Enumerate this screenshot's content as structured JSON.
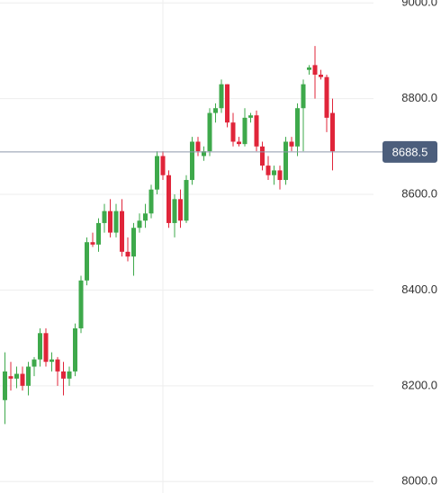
{
  "chart_data": {
    "type": "candlestick",
    "open": [
      8170,
      8220,
      8215,
      8225,
      8200,
      8240,
      8255,
      8310,
      8250,
      8255,
      8230,
      8215,
      8230,
      8320,
      8420,
      8500,
      8495,
      8540,
      8565,
      8520,
      8565,
      8480,
      8470,
      8530,
      8545,
      8560,
      8610,
      8680,
      8640,
      8540,
      8590,
      8545,
      8630,
      8710,
      8680,
      8690,
      8770,
      8780,
      8830,
      8750,
      8710,
      8705,
      8760,
      8765,
      8700,
      8660,
      8640,
      8650,
      8630,
      8710,
      8700,
      8780,
      8860,
      8870,
      8850,
      8845,
      8770
    ],
    "high": [
      8270,
      8250,
      8240,
      8240,
      8250,
      8260,
      8320,
      8320,
      8270,
      8260,
      8250,
      8240,
      8330,
      8430,
      8510,
      8520,
      8550,
      8580,
      8590,
      8580,
      8590,
      8510,
      8540,
      8560,
      8580,
      8620,
      8690,
      8690,
      8650,
      8600,
      8610,
      8640,
      8720,
      8720,
      8700,
      8780,
      8790,
      8840,
      8830,
      8770,
      8720,
      8780,
      8770,
      8775,
      8710,
      8680,
      8660,
      8660,
      8720,
      8720,
      8790,
      8840,
      8870,
      8910,
      8860,
      8850,
      8800
    ],
    "low": [
      8120,
      8190,
      8195,
      8190,
      8180,
      8220,
      8240,
      8240,
      8230,
      8200,
      8180,
      8200,
      8220,
      8310,
      8410,
      8490,
      8480,
      8520,
      8510,
      8510,
      8470,
      8460,
      8430,
      8520,
      8530,
      8550,
      8600,
      8630,
      8530,
      8510,
      8530,
      8540,
      8620,
      8680,
      8670,
      8680,
      8750,
      8770,
      8740,
      8700,
      8700,
      8700,
      8750,
      8690,
      8650,
      8630,
      8620,
      8610,
      8620,
      8690,
      8680,
      8690,
      8850,
      8800,
      8840,
      8730,
      8650
    ],
    "close": [
      8230,
      8215,
      8225,
      8200,
      8240,
      8255,
      8310,
      8250,
      8255,
      8230,
      8215,
      8230,
      8320,
      8420,
      8500,
      8495,
      8540,
      8565,
      8520,
      8565,
      8480,
      8470,
      8530,
      8545,
      8560,
      8610,
      8680,
      8640,
      8540,
      8590,
      8545,
      8630,
      8710,
      8690,
      8690,
      8770,
      8780,
      8830,
      8750,
      8710,
      8705,
      8760,
      8765,
      8700,
      8660,
      8640,
      8650,
      8630,
      8710,
      8700,
      8780,
      8830,
      8865,
      8850,
      8845,
      8760,
      8690
    ],
    "up_color": "#3ea94b",
    "down_color": "#e0253a",
    "ylim": [
      7976,
      9006
    ],
    "yticks": [
      {
        "value": 8000,
        "label": "8000.0"
      },
      {
        "value": 8200,
        "label": "8200.0"
      },
      {
        "value": 8400,
        "label": "8400.0"
      },
      {
        "value": 8600,
        "label": "8600.0"
      },
      {
        "value": 8800,
        "label": "8800.0"
      },
      {
        "value": 9000,
        "label": "9000.0"
      }
    ],
    "grid": true,
    "current_price": 8688.5
  }
}
